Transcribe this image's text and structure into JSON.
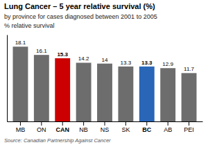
{
  "chart_data": {
    "type": "bar",
    "title": "Lung Cancer – 5 year relative survival (%)",
    "subtitle": "by province for cases diagnosed between 2001 to 2005",
    "ylabel": "% relative survival",
    "source": "Source: Canadian Partnership Against Cancer",
    "categories": [
      "MB",
      "ON",
      "CAN",
      "NB",
      "NS",
      "SK",
      "BC",
      "AB",
      "PEI"
    ],
    "values": [
      18.1,
      16.1,
      15.3,
      14.2,
      14.0,
      13.3,
      13.3,
      12.9,
      11.7
    ],
    "colors": [
      "#6d6d6d",
      "#6d6d6d",
      "#cc0000",
      "#6d6d6d",
      "#6d6d6d",
      "#6d6d6d",
      "#2966b8",
      "#6d6d6d",
      "#6d6d6d"
    ],
    "ylim": [
      0,
      21
    ],
    "data_labels": true,
    "tick_labels": "x",
    "grid": false
  }
}
